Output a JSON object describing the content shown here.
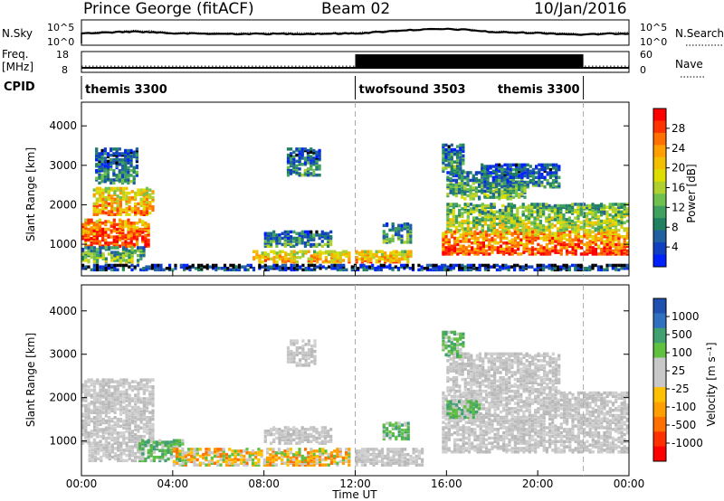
{
  "header": {
    "radar_title": "Prince George (fitACF)",
    "beam": "Beam 02",
    "date": "10/Jan/2016"
  },
  "chart_data": [
    {
      "id": "nsky-nsearch",
      "type": "line",
      "left_label": "N.Sky",
      "right_label": "N.Search",
      "left_ticks": [
        "10^5",
        "10^0"
      ],
      "right_ticks": [
        "10^5",
        "10^0"
      ],
      "series": [
        {
          "style": "dotted",
          "values_hours": [
            0,
            0.5,
            1,
            1.5,
            2,
            2.5,
            3,
            3.5,
            4,
            6,
            8,
            10,
            12,
            13,
            14,
            15,
            16,
            17,
            18,
            20,
            22,
            23,
            24
          ],
          "values_log": [
            2.4,
            2.6,
            2.7,
            2.8,
            2.9,
            3.0,
            2.9,
            2.7,
            2.5,
            2.4,
            2.4,
            2.4,
            2.5,
            2.8,
            3.1,
            3.3,
            3.4,
            3.2,
            2.8,
            2.6,
            2.2,
            2.4,
            2.5
          ]
        },
        {
          "style": "solid",
          "values_hours": [
            0,
            0.5,
            1,
            1.5,
            2,
            2.5,
            3,
            3.5,
            4,
            6,
            8,
            10,
            12,
            13,
            14,
            15,
            16,
            17,
            18,
            20,
            22,
            23,
            24
          ],
          "values_log": [
            2.2,
            2.4,
            2.5,
            2.6,
            2.7,
            2.7,
            2.6,
            2.5,
            2.3,
            2.2,
            2.2,
            2.2,
            2.3,
            2.6,
            3.0,
            3.2,
            3.3,
            3.1,
            2.6,
            2.4,
            2.0,
            2.2,
            2.3
          ]
        }
      ],
      "xlim": [
        0,
        24
      ]
    },
    {
      "id": "freq-nave",
      "type": "line",
      "left_label_top": "Freq.",
      "left_label_unit": "[MHz]",
      "right_label": "Nave",
      "left_ticks": [
        "18",
        "8"
      ],
      "right_ticks": [
        "60",
        "0"
      ],
      "freq_mhz_level": 11,
      "nave_segments": [
        {
          "from_hour": 0,
          "to_hour": 12,
          "level": 2
        },
        {
          "from_hour": 12,
          "to_hour": 22,
          "level": 52
        },
        {
          "from_hour": 22,
          "to_hour": 24,
          "level": 2
        }
      ]
    },
    {
      "id": "cpid",
      "type": "table",
      "label": "CPID",
      "segments": [
        {
          "from_hour": 0,
          "to_hour": 12,
          "name": "themis 3300",
          "align": "left"
        },
        {
          "from_hour": 12,
          "to_hour": 22,
          "name": "twofsound 3503",
          "align": "left"
        },
        {
          "from_hour": 12,
          "to_hour": 22,
          "name": "themis 3300",
          "align": "right"
        }
      ]
    },
    {
      "id": "power",
      "type": "heatmap",
      "ylabel": "Slant Range [km]",
      "y_ticks": [
        1000,
        2000,
        3000,
        4000
      ],
      "ylim": [
        200,
        4600
      ],
      "colorbar_label": "Power [dB]",
      "colorbar_ticks": [
        "28",
        "24",
        "20",
        "16",
        "12",
        "8",
        "4"
      ],
      "colorbar_colors": [
        "#ff0000",
        "#ff3300",
        "#ff7000",
        "#ffa000",
        "#f2c000",
        "#dddd00",
        "#b0d030",
        "#70c050",
        "#40a060",
        "#208060",
        "#2060a0",
        "#1040c0",
        "#0020ff"
      ],
      "regions": [
        {
          "t0": 0.0,
          "t1": 3.0,
          "r0": 900,
          "r1": 1600,
          "level": 0.9
        },
        {
          "t0": 0.5,
          "t1": 3.2,
          "r0": 1700,
          "r1": 2400,
          "level": 0.75
        },
        {
          "t0": 0.6,
          "t1": 2.5,
          "r0": 2500,
          "r1": 3400,
          "level": 0.3
        },
        {
          "t0": 0.0,
          "t1": 2.8,
          "r0": 500,
          "r1": 900,
          "level": 0.45
        },
        {
          "t0": 7.5,
          "t1": 11.8,
          "r0": 500,
          "r1": 800,
          "level": 0.7
        },
        {
          "t0": 8.0,
          "t1": 11.0,
          "r0": 900,
          "r1": 1300,
          "level": 0.35
        },
        {
          "t0": 9.0,
          "t1": 10.5,
          "r0": 2700,
          "r1": 3400,
          "level": 0.3
        },
        {
          "t0": 12.0,
          "t1": 14.5,
          "r0": 500,
          "r1": 800,
          "level": 0.75
        },
        {
          "t0": 13.2,
          "t1": 14.5,
          "r0": 1000,
          "r1": 1500,
          "level": 0.4
        },
        {
          "t0": 15.8,
          "t1": 24.0,
          "r0": 700,
          "r1": 1300,
          "level": 0.88
        },
        {
          "t0": 16.0,
          "t1": 24.0,
          "r0": 1300,
          "r1": 2000,
          "level": 0.55
        },
        {
          "t0": 16.0,
          "t1": 19.5,
          "r0": 2100,
          "r1": 2800,
          "level": 0.4
        },
        {
          "t0": 15.8,
          "t1": 16.8,
          "r0": 2800,
          "r1": 3500,
          "level": 0.35
        },
        {
          "t0": 17.5,
          "t1": 21.0,
          "r0": 2400,
          "r1": 3000,
          "level": 0.3
        },
        {
          "t0": 0.0,
          "t1": 24.0,
          "r0": 300,
          "r1": 450,
          "level": 0.15
        }
      ]
    },
    {
      "id": "velocity",
      "type": "heatmap",
      "ylabel": "Slant Range [km]",
      "y_ticks": [
        1000,
        2000,
        3000,
        4000
      ],
      "ylim": [
        200,
        4600
      ],
      "colorbar_label": "Velocity [m s⁻¹]",
      "colorbar_ticks": [
        "1000",
        "500",
        "100",
        "25",
        "-25",
        "-100",
        "-500",
        "-1000"
      ],
      "colorbar_colors": [
        "#2050b0",
        "#3070c0",
        "#40a070",
        "#60c040",
        "#c8c8c8",
        "#c8c8c8",
        "#ffc000",
        "#ffa000",
        "#ff7000",
        "#ff3000",
        "#ff0000"
      ],
      "regions": [
        {
          "t0": 0.0,
          "t1": 3.2,
          "r0": 900,
          "r1": 2400,
          "kind": "gray"
        },
        {
          "t0": 0.3,
          "t1": 2.8,
          "r0": 500,
          "r1": 900,
          "kind": "gray"
        },
        {
          "t0": 2.5,
          "t1": 4.5,
          "r0": 500,
          "r1": 1000,
          "kind": "green"
        },
        {
          "t0": 4.0,
          "t1": 11.8,
          "r0": 400,
          "r1": 800,
          "kind": "yellow"
        },
        {
          "t0": 8.0,
          "t1": 11.0,
          "r0": 900,
          "r1": 1300,
          "kind": "gray"
        },
        {
          "t0": 9.0,
          "t1": 10.3,
          "r0": 2700,
          "r1": 3300,
          "kind": "gray"
        },
        {
          "t0": 12.0,
          "t1": 15.0,
          "r0": 400,
          "r1": 800,
          "kind": "gray"
        },
        {
          "t0": 13.2,
          "t1": 14.4,
          "r0": 1000,
          "r1": 1400,
          "kind": "green"
        },
        {
          "t0": 15.8,
          "t1": 24.0,
          "r0": 700,
          "r1": 2100,
          "kind": "gray"
        },
        {
          "t0": 16.0,
          "t1": 21.0,
          "r0": 2100,
          "r1": 3000,
          "kind": "gray"
        },
        {
          "t0": 16.0,
          "t1": 17.5,
          "r0": 1500,
          "r1": 1900,
          "kind": "green"
        },
        {
          "t0": 15.8,
          "t1": 16.8,
          "r0": 2900,
          "r1": 3500,
          "kind": "green"
        }
      ]
    }
  ],
  "xaxis": {
    "label": "Time UT",
    "ticks": [
      "00:00",
      "04:00",
      "08:00",
      "12:00",
      "16:00",
      "20:00",
      "00:00"
    ],
    "xlim": [
      0,
      24
    ],
    "dashed_markers_hours": [
      12,
      22
    ]
  }
}
